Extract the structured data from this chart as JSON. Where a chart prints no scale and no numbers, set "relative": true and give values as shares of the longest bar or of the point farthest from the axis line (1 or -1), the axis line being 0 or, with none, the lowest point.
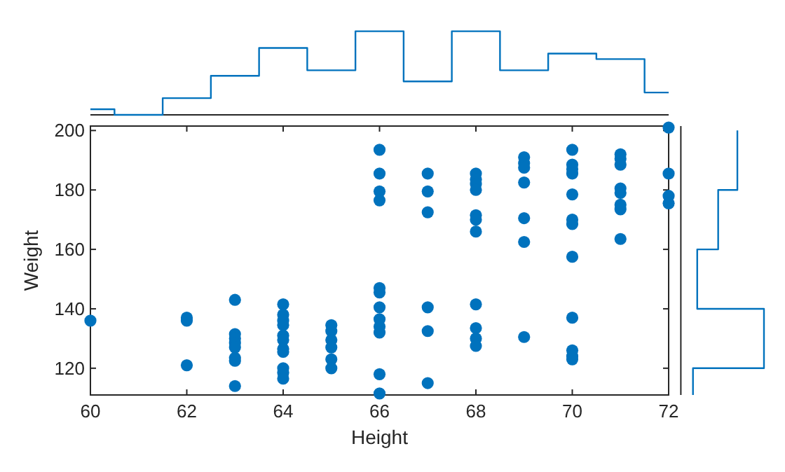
{
  "chart_data": [
    {
      "type": "scatter",
      "xlabel": "Height",
      "ylabel": "Weight",
      "color": "#0072bd",
      "marker": "circle",
      "x": [
        60,
        62,
        62,
        62,
        63,
        63,
        63,
        63,
        63,
        63,
        63,
        63,
        64,
        64,
        64,
        64,
        64,
        64,
        64,
        64,
        64,
        64,
        64,
        65,
        65,
        65,
        65,
        65,
        65,
        66,
        66,
        66,
        66,
        66,
        66,
        66,
        66,
        66,
        66,
        66,
        66,
        67,
        67,
        67,
        67,
        67,
        67,
        68,
        68,
        68,
        68,
        68,
        68,
        68,
        68,
        68,
        68,
        68,
        69,
        69,
        69,
        69,
        69,
        69,
        69,
        70,
        70,
        70,
        70,
        70,
        70,
        70,
        70,
        70,
        70,
        70,
        70,
        71,
        71,
        71,
        71,
        71,
        71,
        71,
        71,
        72,
        72,
        72,
        72
      ],
      "values": [
        136,
        137,
        136,
        121,
        143,
        131.5,
        130,
        128.5,
        127,
        123.5,
        122.5,
        114,
        141.5,
        138,
        136,
        134.5,
        131,
        129.5,
        126.5,
        125.5,
        120,
        118.5,
        116.5,
        134.5,
        132.5,
        129.5,
        127,
        123,
        120,
        193.5,
        185.5,
        179.5,
        176.5,
        147,
        145.5,
        140.5,
        136.5,
        134,
        132,
        118,
        111.5,
        185.5,
        179.5,
        172.5,
        140.5,
        132.5,
        115,
        185.5,
        183.5,
        182,
        180,
        171.5,
        170,
        166,
        141.5,
        133.5,
        130,
        127.5,
        191,
        189,
        187.5,
        182.5,
        170.5,
        162.5,
        130.5,
        193.5,
        188.5,
        187,
        185.5,
        178.5,
        170,
        168.5,
        157.5,
        137,
        126,
        124,
        123,
        192,
        190.5,
        188.5,
        180.5,
        179,
        175,
        173.5,
        163.5,
        201,
        185.5,
        178,
        175.5
      ],
      "xlim": [
        60,
        72
      ],
      "ylim": [
        111,
        201.5
      ],
      "xticks": [
        60,
        62,
        64,
        66,
        68,
        70,
        72
      ],
      "yticks": [
        120,
        140,
        160,
        180,
        200
      ]
    },
    {
      "type": "step",
      "relative": true,
      "color": "#0072bd",
      "xlim": [
        60,
        72
      ],
      "tick_labels": false,
      "x": [
        60,
        60.5,
        61.5,
        62.5,
        63.5,
        64.5,
        65.5,
        66.5,
        67.5,
        68.5,
        69.5,
        70.5,
        71.5,
        72
      ],
      "values": [
        0.067,
        0,
        0.2,
        0.467,
        0.8,
        0.533,
        1,
        0.4,
        1,
        0.533,
        0.733,
        0.667,
        0.267,
        0.267
      ]
    },
    {
      "type": "step",
      "relative": true,
      "orientation": "horizontal",
      "color": "#0072bd",
      "ylim": [
        111,
        201.5
      ],
      "tick_labels": false,
      "x": [
        111,
        120,
        140,
        160,
        180,
        200
      ],
      "values": [
        0.146,
        1,
        0.197,
        0.449,
        0.68,
        0.68
      ]
    }
  ]
}
